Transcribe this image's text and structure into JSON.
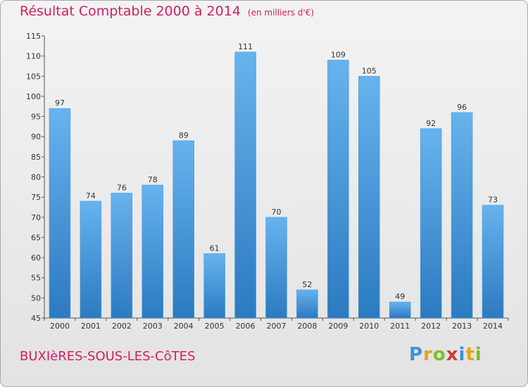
{
  "header": {
    "title": "Résultat Comptable 2000 à 2014",
    "unit": "(en milliers d'€)"
  },
  "footer": {
    "commune": "BUXIèRES-SOUS-LES-CôTES",
    "logo": "Proxiti"
  },
  "colors": {
    "bar_top": "#66b3ee",
    "bar_bottom": "#2c7ac0",
    "title": "#cf2061",
    "logo": [
      "#3f8fd6",
      "#e8a317",
      "#7bbf2a",
      "#d23a3a",
      "#3f8fd6",
      "#e8a317",
      "#7bbf2a"
    ]
  },
  "chart_data": {
    "type": "bar",
    "title": "Résultat Comptable 2000 à 2014",
    "categories": [
      "2000",
      "2001",
      "2002",
      "2003",
      "2004",
      "2005",
      "2006",
      "2007",
      "2008",
      "2009",
      "2010",
      "2011",
      "2012",
      "2013",
      "2014"
    ],
    "values": [
      97,
      74,
      76,
      78,
      89,
      61,
      111,
      70,
      52,
      109,
      105,
      49,
      92,
      96,
      73
    ],
    "ylim": [
      45,
      115
    ],
    "yticks": [
      45,
      50,
      55,
      60,
      65,
      70,
      75,
      80,
      85,
      90,
      95,
      100,
      105,
      110,
      115
    ],
    "grid": false,
    "legend": "none"
  }
}
